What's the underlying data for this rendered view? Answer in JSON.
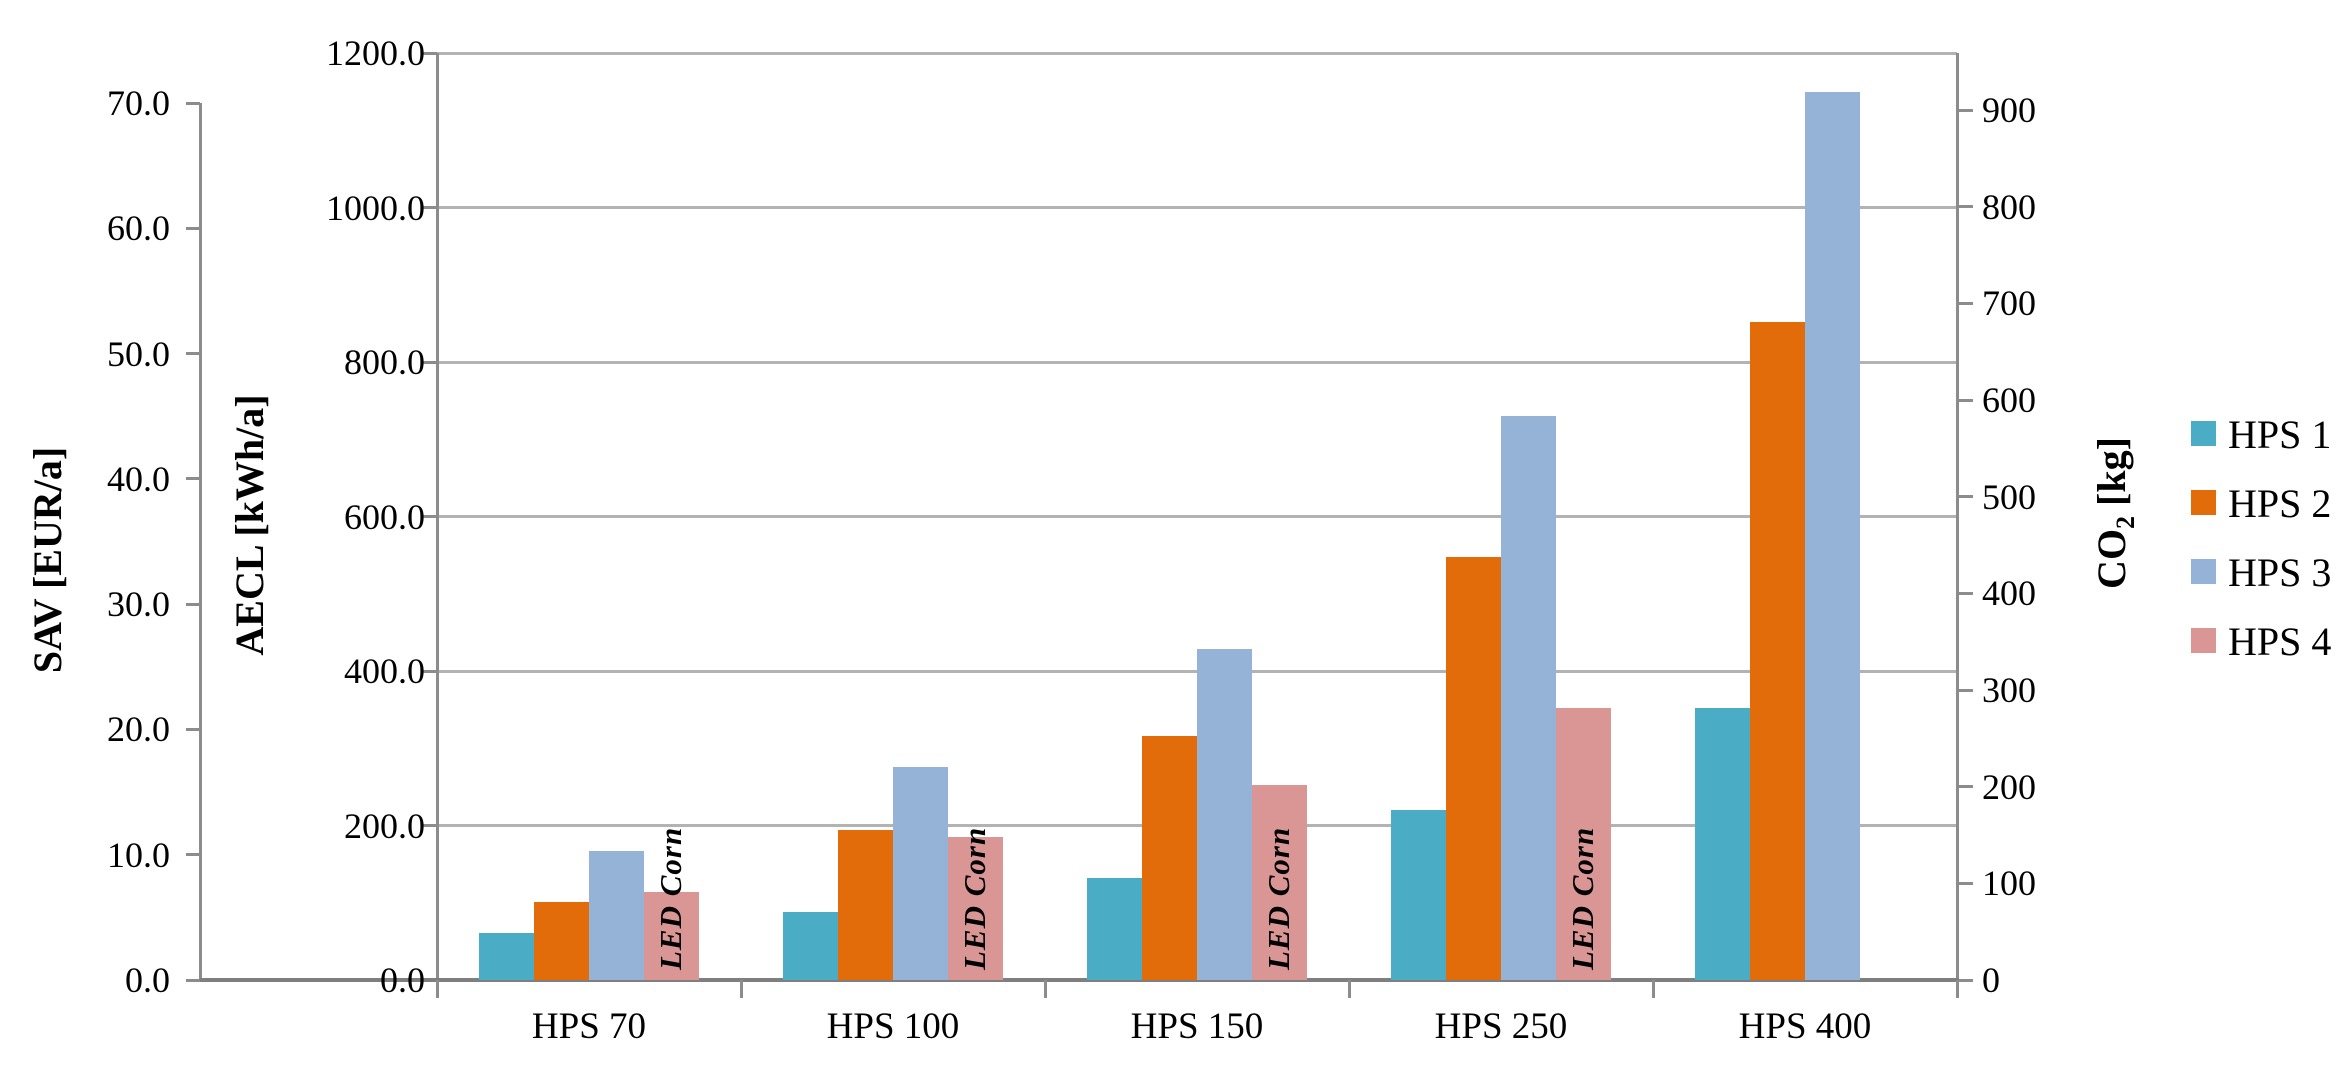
{
  "chart_data": {
    "type": "bar",
    "title": "",
    "categories": [
      "HPS 70",
      "HPS 100",
      "HPS 150",
      "HPS 250",
      "HPS 400"
    ],
    "series": [
      {
        "name": "HPS 1",
        "color": "#4BACC6",
        "values": [
          61,
          88,
          132,
          220,
          352
        ]
      },
      {
        "name": "HPS 2",
        "color": "#E36C0A",
        "values": [
          101,
          194,
          316,
          548,
          852
        ]
      },
      {
        "name": "HPS 3",
        "color": "#95B3D7",
        "values": [
          167,
          276,
          428,
          730,
          1149
        ]
      },
      {
        "name": "HPS 4",
        "color": "#D99694",
        "values": [
          114,
          185,
          252,
          352,
          null
        ],
        "bar_label": "LED Corn"
      }
    ],
    "value_axis_note": "bar values read against the AECL [kWh/a] axis; gridlines every 200 kWh/a",
    "axes": {
      "sav": {
        "title": "SAV [EUR/a]",
        "min": 0,
        "max": 70,
        "tick_labels": [
          "0.0",
          "10.0",
          "20.0",
          "30.0",
          "40.0",
          "50.0",
          "60.0",
          "70.0"
        ]
      },
      "aecl": {
        "title": "AECL [kWh/a]",
        "min": 0,
        "max": 1200,
        "tick_labels": [
          "0.0",
          "200.0",
          "400.0",
          "600.0",
          "800.0",
          "1000.0",
          "1200.0"
        ]
      },
      "co2": {
        "title_main": "CO",
        "title_sub": "2",
        "title_unit": " [kg]",
        "min": 0,
        "max": 900,
        "tick_labels": [
          "0",
          "100",
          "200",
          "300",
          "400",
          "500",
          "600",
          "700",
          "800",
          "900"
        ]
      }
    },
    "legend": {
      "position": "right",
      "entries": [
        "HPS 1",
        "HPS 2",
        "HPS 3",
        "HPS 4"
      ]
    },
    "grid": true,
    "bar_label_text": "LED Corn"
  }
}
